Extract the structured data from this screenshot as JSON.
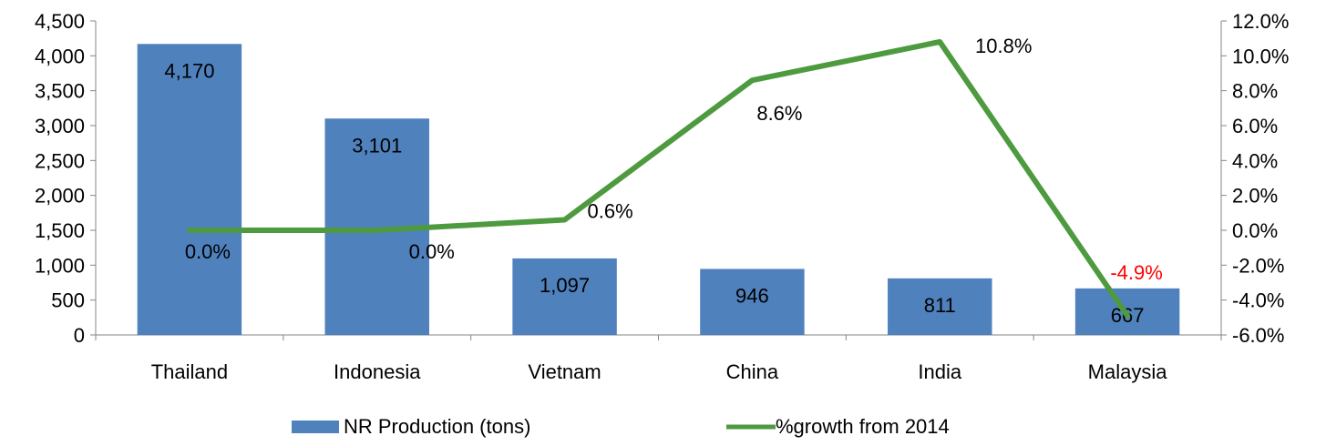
{
  "chart_data": {
    "type": "bar+line",
    "categories": [
      "Thailand",
      "Indonesia",
      "Vietnam",
      "China",
      "India",
      "Malaysia"
    ],
    "series": [
      {
        "name": "NR Production (tons)",
        "type": "bar",
        "axis": "left",
        "values": [
          4170,
          3101,
          1097,
          946,
          811,
          667
        ],
        "labels": [
          "4,170",
          "3,101",
          "1,097",
          "946",
          "811",
          "667"
        ],
        "color": "#4f81bd"
      },
      {
        "name": "%growth from 2014",
        "type": "line",
        "axis": "right",
        "values": [
          0.0,
          0.0,
          0.6,
          8.6,
          10.8,
          -4.9
        ],
        "labels": [
          "0.0%",
          "0.0%",
          "0.6%",
          "8.6%",
          "10.8%",
          "-4.9%"
        ],
        "color": "#4e9a3f",
        "negative_label_color": "#ff0000"
      }
    ],
    "y_left": {
      "lim": [
        0,
        4500
      ],
      "ticks": [
        0,
        500,
        1000,
        1500,
        2000,
        2500,
        3000,
        3500,
        4000,
        4500
      ],
      "tick_labels": [
        "0",
        "500",
        "1,000",
        "1,500",
        "2,000",
        "2,500",
        "3,000",
        "3,500",
        "4,000",
        "4,500"
      ]
    },
    "y_right": {
      "lim": [
        -6,
        12
      ],
      "ticks": [
        -6,
        -4,
        -2,
        0,
        2,
        4,
        6,
        8,
        10,
        12
      ],
      "tick_labels": [
        "-6.0%",
        "-4.0%",
        "-2.0%",
        "0.0%",
        "2.0%",
        "4.0%",
        "6.0%",
        "8.0%",
        "10.0%",
        "12.0%"
      ]
    },
    "grid": false,
    "legend_position": "bottom"
  }
}
